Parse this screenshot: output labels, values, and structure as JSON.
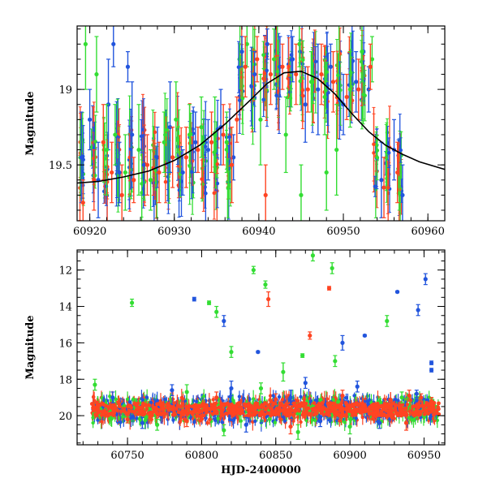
{
  "chart_data": [
    {
      "type": "scatter",
      "title": "",
      "xlabel": "",
      "ylabel": "Magnitude",
      "xlim": [
        60918.5,
        60962
      ],
      "ylim": [
        19.87,
        18.58
      ],
      "y_inverted": true,
      "x_ticks": [
        60920,
        60930,
        60940,
        60950,
        60960
      ],
      "x_tick_labels": [
        "60920",
        "60930",
        "60940",
        "60950",
        "60960"
      ],
      "y_ticks": [
        19,
        19.5
      ],
      "y_tick_labels": [
        "19",
        "19.5"
      ],
      "grid": false,
      "legend": "none",
      "series": [
        {
          "color": "#2255dd",
          "points": [
            {
              "x": 60919.0,
              "y": 19.45,
              "err": 0.3
            },
            {
              "x": 60920.0,
              "y": 19.2,
              "err": 0.2
            },
            {
              "x": 60921.0,
              "y": 19.6,
              "err": 0.25
            },
            {
              "x": 60922.2,
              "y": 19.1,
              "err": 0.3
            },
            {
              "x": 60923.5,
              "y": 19.55,
              "err": 0.2
            },
            {
              "x": 60925.0,
              "y": 19.3,
              "err": 0.35
            },
            {
              "x": 60926.4,
              "y": 19.5,
              "err": 0.2
            },
            {
              "x": 60928.0,
              "y": 19.45,
              "err": 0.2
            },
            {
              "x": 60929.5,
              "y": 19.25,
              "err": 0.3
            },
            {
              "x": 60931.0,
              "y": 19.55,
              "err": 0.15
            },
            {
              "x": 60932.5,
              "y": 19.35,
              "err": 0.2
            },
            {
              "x": 60934.0,
              "y": 19.4,
              "err": 0.2
            },
            {
              "x": 60935.5,
              "y": 19.25,
              "err": 0.25
            },
            {
              "x": 60937.0,
              "y": 19.45,
              "err": 0.15
            },
            {
              "x": 60938.0,
              "y": 18.75,
              "err": 0.1
            },
            {
              "x": 60939.5,
              "y": 18.9,
              "err": 0.15
            },
            {
              "x": 60941.0,
              "y": 18.7,
              "err": 0.1
            },
            {
              "x": 60942.5,
              "y": 18.85,
              "err": 0.2
            },
            {
              "x": 60944.0,
              "y": 18.8,
              "err": 0.15
            },
            {
              "x": 60945.5,
              "y": 19.1,
              "err": 0.25
            },
            {
              "x": 60947.0,
              "y": 19.0,
              "err": 0.3
            },
            {
              "x": 60948.5,
              "y": 18.85,
              "err": 0.15
            },
            {
              "x": 60950.0,
              "y": 19.1,
              "err": 0.2
            },
            {
              "x": 60951.5,
              "y": 18.95,
              "err": 0.2
            },
            {
              "x": 60953.0,
              "y": 19.0,
              "err": 0.15
            },
            {
              "x": 60954.5,
              "y": 19.6,
              "err": 0.25
            },
            {
              "x": 60956.0,
              "y": 19.4,
              "err": 0.2
            },
            {
              "x": 60957.0,
              "y": 19.7,
              "err": 0.2
            },
            {
              "x": 60922.8,
              "y": 18.7,
              "err": 0.15
            },
            {
              "x": 60924.5,
              "y": 18.85,
              "err": 0.1
            }
          ]
        },
        {
          "color": "#33dd33",
          "points": [
            {
              "x": 60919.5,
              "y": 18.7,
              "err": 0.3
            },
            {
              "x": 60920.8,
              "y": 18.9,
              "err": 0.25
            },
            {
              "x": 60922.0,
              "y": 19.4,
              "err": 0.3
            },
            {
              "x": 60923.0,
              "y": 19.3,
              "err": 0.2
            },
            {
              "x": 60924.2,
              "y": 19.55,
              "err": 0.25
            },
            {
              "x": 60925.8,
              "y": 19.4,
              "err": 0.3
            },
            {
              "x": 60927.2,
              "y": 19.6,
              "err": 0.2
            },
            {
              "x": 60928.8,
              "y": 19.35,
              "err": 0.2
            },
            {
              "x": 60930.2,
              "y": 19.2,
              "err": 0.25
            },
            {
              "x": 60931.8,
              "y": 19.3,
              "err": 0.2
            },
            {
              "x": 60933.2,
              "y": 19.25,
              "err": 0.2
            },
            {
              "x": 60934.8,
              "y": 19.3,
              "err": 0.25
            },
            {
              "x": 60936.2,
              "y": 19.35,
              "err": 0.2
            },
            {
              "x": 60938.6,
              "y": 18.7,
              "err": 0.15
            },
            {
              "x": 60940.2,
              "y": 19.2,
              "err": 0.3
            },
            {
              "x": 60941.8,
              "y": 18.8,
              "err": 0.2
            },
            {
              "x": 60943.2,
              "y": 19.3,
              "err": 0.25
            },
            {
              "x": 60944.8,
              "y": 18.7,
              "err": 0.15
            },
            {
              "x": 60946.2,
              "y": 18.95,
              "err": 0.2
            },
            {
              "x": 60947.8,
              "y": 19.05,
              "err": 0.25
            },
            {
              "x": 60949.2,
              "y": 19.4,
              "err": 0.3
            },
            {
              "x": 60950.8,
              "y": 19.0,
              "err": 0.25
            },
            {
              "x": 60952.2,
              "y": 18.75,
              "err": 0.2
            },
            {
              "x": 60953.4,
              "y": 18.8,
              "err": 0.15
            },
            {
              "x": 60945.0,
              "y": 19.7,
              "err": 0.2
            },
            {
              "x": 60948.0,
              "y": 19.55,
              "err": 0.25
            }
          ]
        },
        {
          "color": "#ff4422",
          "points": [
            {
              "x": 60919.2,
              "y": 19.75,
              "err": 0.15
            },
            {
              "x": 60920.5,
              "y": 19.6,
              "err": 0.2
            },
            {
              "x": 60921.6,
              "y": 19.35,
              "err": 0.25
            },
            {
              "x": 60922.6,
              "y": 19.55,
              "err": 0.2
            },
            {
              "x": 60923.8,
              "y": 19.7,
              "err": 0.2
            },
            {
              "x": 60925.2,
              "y": 19.6,
              "err": 0.15
            },
            {
              "x": 60926.8,
              "y": 19.5,
              "err": 0.2
            },
            {
              "x": 60928.2,
              "y": 19.55,
              "err": 0.2
            },
            {
              "x": 60929.8,
              "y": 19.45,
              "err": 0.2
            },
            {
              "x": 60931.4,
              "y": 19.45,
              "err": 0.2
            },
            {
              "x": 60932.8,
              "y": 19.4,
              "err": 0.15
            },
            {
              "x": 60934.4,
              "y": 19.35,
              "err": 0.2
            },
            {
              "x": 60935.8,
              "y": 19.3,
              "err": 0.2
            },
            {
              "x": 60937.4,
              "y": 19.2,
              "err": 0.15
            },
            {
              "x": 60938.4,
              "y": 18.85,
              "err": 0.2
            },
            {
              "x": 60939.8,
              "y": 18.8,
              "err": 0.15
            },
            {
              "x": 60941.4,
              "y": 18.9,
              "err": 0.2
            },
            {
              "x": 60942.8,
              "y": 18.85,
              "err": 0.15
            },
            {
              "x": 60944.4,
              "y": 18.9,
              "err": 0.2
            },
            {
              "x": 60945.8,
              "y": 19.0,
              "err": 0.15
            },
            {
              "x": 60947.4,
              "y": 18.9,
              "err": 0.2
            },
            {
              "x": 60948.8,
              "y": 18.95,
              "err": 0.2
            },
            {
              "x": 60950.4,
              "y": 19.05,
              "err": 0.15
            },
            {
              "x": 60951.8,
              "y": 19.0,
              "err": 0.2
            },
            {
              "x": 60953.2,
              "y": 18.85,
              "err": 0.15
            },
            {
              "x": 60954.8,
              "y": 19.65,
              "err": 0.2
            },
            {
              "x": 60956.4,
              "y": 19.55,
              "err": 0.2
            },
            {
              "x": 60940.8,
              "y": 19.7,
              "err": 0.2
            },
            {
              "x": 60936.8,
              "y": 19.5,
              "err": 0.25
            }
          ]
        }
      ],
      "fit_curve": {
        "color": "#000000",
        "points": [
          {
            "x": 60918.5,
            "y": 19.62
          },
          {
            "x": 60921,
            "y": 19.61
          },
          {
            "x": 60924,
            "y": 19.58
          },
          {
            "x": 60927,
            "y": 19.54
          },
          {
            "x": 60930,
            "y": 19.47
          },
          {
            "x": 60933,
            "y": 19.37
          },
          {
            "x": 60936,
            "y": 19.23
          },
          {
            "x": 60939,
            "y": 19.07
          },
          {
            "x": 60941,
            "y": 18.96
          },
          {
            "x": 60943,
            "y": 18.89
          },
          {
            "x": 60945,
            "y": 18.88
          },
          {
            "x": 60947,
            "y": 18.93
          },
          {
            "x": 60949,
            "y": 19.03
          },
          {
            "x": 60951,
            "y": 19.16
          },
          {
            "x": 60953,
            "y": 19.28
          },
          {
            "x": 60955,
            "y": 19.37
          },
          {
            "x": 60957,
            "y": 19.43
          },
          {
            "x": 60959,
            "y": 19.48
          },
          {
            "x": 60962,
            "y": 19.53
          }
        ]
      }
    },
    {
      "type": "scatter",
      "title": "",
      "xlabel": "HJD-2400000",
      "ylabel": "Magnitude",
      "xlim": [
        60716,
        60964
      ],
      "ylim": [
        21.6,
        10.9
      ],
      "y_inverted": true,
      "x_ticks": [
        60750,
        60800,
        60850,
        60900,
        60950
      ],
      "x_tick_labels": [
        "60750",
        "60800",
        "60850",
        "60900",
        "60950"
      ],
      "y_ticks": [
        12,
        14,
        16,
        18,
        20
      ],
      "y_tick_labels": [
        "12",
        "14",
        "16",
        "18",
        "20"
      ],
      "grid": false,
      "legend": "none",
      "band": {
        "x_start": 60726,
        "x_end": 60960,
        "y_center": 19.65
      },
      "series": [
        {
          "color": "#2255dd",
          "points": [
            {
              "x": 60795,
              "y": 13.6,
              "err": 0.1
            },
            {
              "x": 60815,
              "y": 14.8,
              "err": 0.3
            },
            {
              "x": 60838,
              "y": 16.5,
              "err": 0.05
            },
            {
              "x": 60895,
              "y": 16.0,
              "err": 0.4
            },
            {
              "x": 60910,
              "y": 15.6,
              "err": 0.05
            },
            {
              "x": 60932,
              "y": 13.2,
              "err": 0.05
            },
            {
              "x": 60946,
              "y": 14.2,
              "err": 0.3
            },
            {
              "x": 60951,
              "y": 12.5,
              "err": 0.3
            },
            {
              "x": 60955,
              "y": 17.5,
              "err": 0.1
            },
            {
              "x": 60955,
              "y": 17.1,
              "err": 0.1
            },
            {
              "x": 60905,
              "y": 18.4,
              "err": 0.3
            },
            {
              "x": 60870,
              "y": 18.2,
              "err": 0.3
            },
            {
              "x": 60820,
              "y": 18.5,
              "err": 0.4
            },
            {
              "x": 60780,
              "y": 18.6,
              "err": 0.3
            },
            {
              "x": 60740,
              "y": 19.0,
              "err": 0.3
            },
            {
              "x": 60760,
              "y": 20.4,
              "err": 0.3
            },
            {
              "x": 60830,
              "y": 20.5,
              "err": 0.4
            },
            {
              "x": 60880,
              "y": 20.3,
              "err": 0.3
            },
            {
              "x": 60920,
              "y": 20.4,
              "err": 0.3
            },
            {
              "x": 60945,
              "y": 18.8,
              "err": 0.2
            },
            {
              "x": 60860,
              "y": 19.0,
              "err": 0.4
            }
          ]
        },
        {
          "color": "#33dd33",
          "points": [
            {
              "x": 60753,
              "y": 13.8,
              "err": 0.2
            },
            {
              "x": 60805,
              "y": 13.8,
              "err": 0.1
            },
            {
              "x": 60810,
              "y": 14.3,
              "err": 0.3
            },
            {
              "x": 60835,
              "y": 12.0,
              "err": 0.2
            },
            {
              "x": 60843,
              "y": 12.8,
              "err": 0.2
            },
            {
              "x": 60875,
              "y": 11.2,
              "err": 0.3
            },
            {
              "x": 60888,
              "y": 11.9,
              "err": 0.3
            },
            {
              "x": 60925,
              "y": 14.8,
              "err": 0.3
            },
            {
              "x": 60820,
              "y": 16.5,
              "err": 0.3
            },
            {
              "x": 60868,
              "y": 16.7,
              "err": 0.1
            },
            {
              "x": 60890,
              "y": 17.0,
              "err": 0.3
            },
            {
              "x": 60855,
              "y": 17.6,
              "err": 0.5
            },
            {
              "x": 60728,
              "y": 18.3,
              "err": 0.3
            },
            {
              "x": 60790,
              "y": 18.7,
              "err": 0.4
            },
            {
              "x": 60840,
              "y": 18.5,
              "err": 0.3
            },
            {
              "x": 60770,
              "y": 20.5,
              "err": 0.3
            },
            {
              "x": 60815,
              "y": 20.8,
              "err": 0.3
            },
            {
              "x": 60900,
              "y": 20.6,
              "err": 0.4
            },
            {
              "x": 60935,
              "y": 19.0,
              "err": 0.3
            },
            {
              "x": 60865,
              "y": 20.9,
              "err": 0.4
            }
          ]
        },
        {
          "color": "#ff4422",
          "points": [
            {
              "x": 60845,
              "y": 13.6,
              "err": 0.4
            },
            {
              "x": 60886,
              "y": 13.0,
              "err": 0.1
            },
            {
              "x": 60873,
              "y": 15.6,
              "err": 0.2
            },
            {
              "x": 60810,
              "y": 19.0,
              "err": 0.3
            },
            {
              "x": 60850,
              "y": 19.1,
              "err": 0.3
            },
            {
              "x": 60895,
              "y": 18.9,
              "err": 0.3
            },
            {
              "x": 60940,
              "y": 18.9,
              "err": 0.3
            },
            {
              "x": 60948,
              "y": 19.0,
              "err": 0.2
            },
            {
              "x": 60955,
              "y": 19.2,
              "err": 0.2
            },
            {
              "x": 60750,
              "y": 20.2,
              "err": 0.2
            },
            {
              "x": 60790,
              "y": 20.3,
              "err": 0.3
            },
            {
              "x": 60860,
              "y": 20.6,
              "err": 0.4
            },
            {
              "x": 60938,
              "y": 20.4,
              "err": 0.4
            },
            {
              "x": 60730,
              "y": 19.4,
              "err": 0.2
            }
          ]
        }
      ]
    }
  ]
}
